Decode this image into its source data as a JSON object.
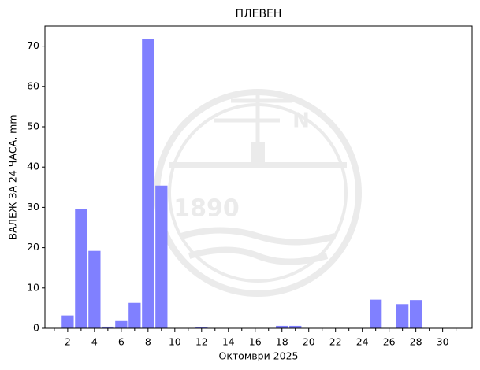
{
  "chart_data": {
    "type": "bar",
    "title": "ПЛЕВЕН",
    "xlabel": "Октомври  2025",
    "ylabel": "ВАЛЕЖ ЗА 24 ЧАСА,  mm",
    "x": [
      1,
      2,
      3,
      4,
      5,
      6,
      7,
      8,
      9,
      10,
      11,
      12,
      13,
      14,
      15,
      16,
      17,
      18,
      19,
      20,
      21,
      22,
      23,
      24,
      25,
      26,
      27,
      28,
      29,
      30,
      31
    ],
    "values": [
      0,
      3.2,
      29.5,
      19.2,
      0.4,
      1.8,
      6.3,
      71.8,
      35.4,
      0,
      0,
      0.2,
      0,
      0,
      0,
      0,
      0,
      0.6,
      0.6,
      0,
      0,
      0,
      0,
      0,
      7.1,
      0,
      6.0,
      7.0,
      0,
      0,
      0
    ],
    "color": "#8080ff",
    "xlim": [
      0.3,
      32.2
    ],
    "xticks": [
      2,
      4,
      6,
      8,
      10,
      12,
      14,
      16,
      18,
      20,
      22,
      24,
      26,
      28,
      30
    ],
    "xminorticks": [
      1,
      3,
      5,
      7,
      9,
      11,
      13,
      15,
      17,
      19,
      21,
      23,
      25,
      27,
      29,
      31
    ],
    "ylim": [
      0,
      75
    ],
    "yticks": [
      0,
      10,
      20,
      30,
      40,
      50,
      60,
      70
    ],
    "watermark": {
      "year": "1890",
      "letter": "N"
    }
  }
}
